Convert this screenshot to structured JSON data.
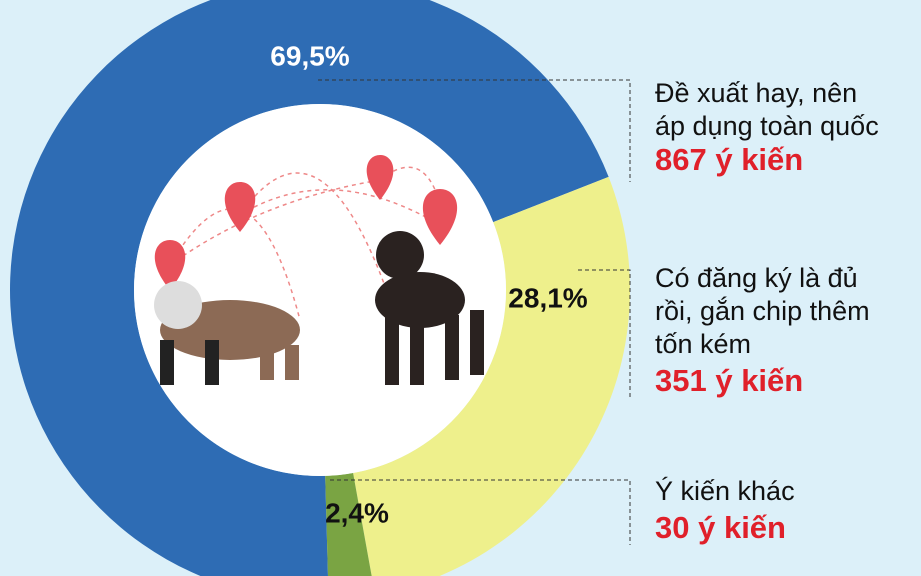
{
  "chart_data": {
    "type": "donut",
    "values": [
      69.5,
      28.1,
      2.4
    ],
    "value_labels": [
      "69,5%",
      "28,1%",
      "2,4%"
    ],
    "colors": [
      "#2e6cb4",
      "#eef08c",
      "#7aa443"
    ],
    "categories": [
      [
        "Đề xuất hay, nên",
        "áp dụng toàn quốc"
      ],
      [
        "Có đăng ký là đủ",
        "rồi, gắn chip thêm",
        "tốn kém"
      ],
      [
        "Ý kiến khác"
      ]
    ],
    "counts": [
      "867 ý kiến",
      "351 ý kiến",
      "30 ý kiến"
    ]
  }
}
